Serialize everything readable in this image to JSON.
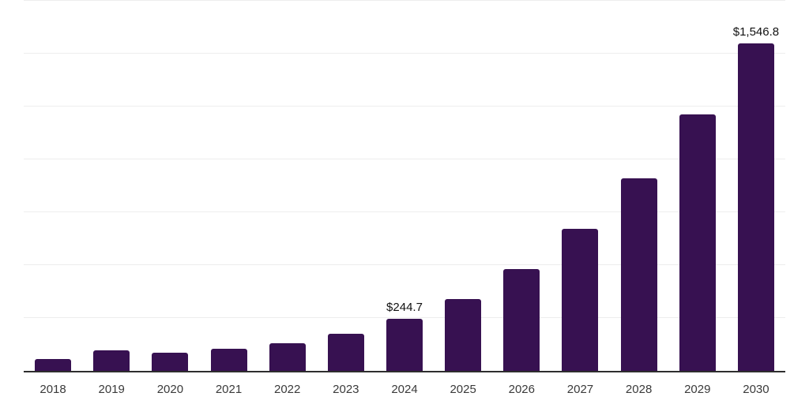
{
  "chart_data": {
    "type": "bar",
    "title": "",
    "xlabel": "",
    "ylabel": "",
    "categories": [
      "2018",
      "2019",
      "2020",
      "2021",
      "2022",
      "2023",
      "2024",
      "2025",
      "2026",
      "2027",
      "2028",
      "2029",
      "2030"
    ],
    "values": [
      55,
      96,
      86,
      105,
      130,
      176,
      244.7,
      341,
      480,
      671,
      911,
      1213,
      1546.8
    ],
    "data_labels": {
      "2024": "$244.7",
      "2030": "$1,546.8"
    },
    "ylim": [
      0,
      1750
    ],
    "gridline_interval": 250,
    "grid": true,
    "legend_position": "none",
    "colors": {
      "bar": "#371151",
      "axis_line": "#2e2e2e",
      "gridline": "#ededed",
      "tick_label": "#3a3a3a",
      "data_label": "#111111",
      "background": "#ffffff"
    }
  }
}
